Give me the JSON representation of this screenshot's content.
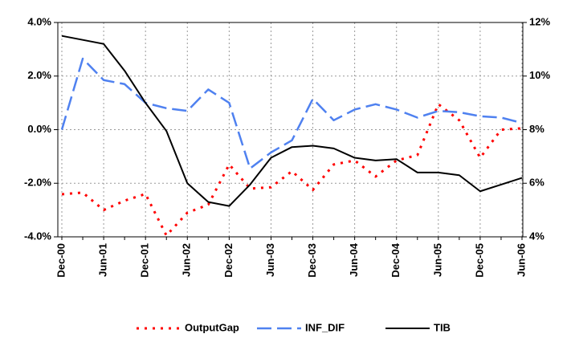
{
  "chart_data": {
    "type": "line",
    "categories": [
      "Dec-00",
      null,
      "Jun-01",
      null,
      "Dec-01",
      null,
      "Jun-02",
      null,
      "Dec-02",
      null,
      "Jun-03",
      null,
      "Dec-03",
      null,
      "Jun-04",
      null,
      "Dec-04",
      null,
      "Jun-05",
      null,
      "Dec-05",
      null,
      "Jun-06"
    ],
    "series": [
      {
        "name": "OutputGap",
        "color": "#ff0000",
        "dash": "dotted",
        "values": [
          -2.41,
          -2.35,
          -3.0,
          -2.65,
          -2.4,
          -3.95,
          -3.1,
          -2.8,
          -1.3,
          -2.2,
          -2.15,
          -1.55,
          -2.25,
          -1.3,
          -1.15,
          -1.75,
          -1.15,
          -0.95,
          0.95,
          0.35,
          -1.05,
          0.0,
          0.05
        ]
      },
      {
        "name": "INF_DIF",
        "color": "#4f81f0",
        "dash": "dashed",
        "values": [
          0.0,
          2.65,
          1.85,
          1.7,
          1.0,
          0.8,
          0.7,
          1.5,
          1.0,
          -1.45,
          -0.85,
          -0.4,
          1.15,
          0.35,
          0.75,
          0.95,
          0.75,
          0.45,
          0.7,
          0.65,
          0.5,
          0.45,
          0.25
        ]
      },
      {
        "name": "TIB",
        "color": "#000000",
        "dash": "solid",
        "axis": "y2",
        "values": [
          11.5,
          11.35,
          11.2,
          10.2,
          9.0,
          7.95,
          6.0,
          5.3,
          5.15,
          5.95,
          6.95,
          7.35,
          7.4,
          7.3,
          6.95,
          6.85,
          6.9,
          6.4,
          6.4,
          6.3,
          5.7,
          5.95,
          6.2
        ]
      }
    ],
    "ylim": [
      -4,
      4
    ],
    "yticks": [
      {
        "value": -4,
        "label": "-4.0%"
      },
      {
        "value": -2,
        "label": "-2.0%"
      },
      {
        "value": 0,
        "label": "0.0%"
      },
      {
        "value": 2,
        "label": "2.0%"
      },
      {
        "value": 4,
        "label": "4.0%"
      }
    ],
    "y2lim": [
      4,
      12
    ],
    "y2ticks": [
      {
        "value": 4,
        "label": "4%"
      },
      {
        "value": 6,
        "label": "6%"
      },
      {
        "value": 8,
        "label": "8%"
      },
      {
        "value": 10,
        "label": "10%"
      },
      {
        "value": 12,
        "label": "12%"
      }
    ],
    "grid": true,
    "legend": "bottom"
  }
}
